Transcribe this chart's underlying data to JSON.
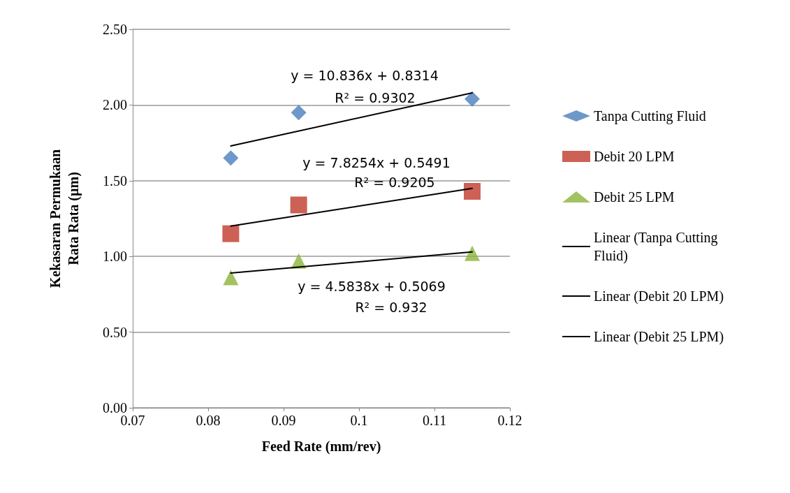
{
  "chart_data": {
    "type": "scatter",
    "xlabel": "Feed Rate (mm/rev)",
    "ylabel": "Kekasaran Permukaan\nRata Rata (µm)",
    "xlim": [
      0.07,
      0.12
    ],
    "xticks": [
      0.07,
      0.08,
      0.09,
      0.1,
      0.11,
      0.12
    ],
    "ylim": [
      0,
      2.5
    ],
    "yticks": [
      {
        "value": 0,
        "label": "0.00"
      },
      {
        "value": 0.5,
        "label": "0.50"
      },
      {
        "value": 1,
        "label": "1.00"
      },
      {
        "value": 1.5,
        "label": "1.50"
      },
      {
        "value": 2,
        "label": "2.00"
      },
      {
        "value": 2.5,
        "label": "2.50"
      }
    ],
    "grid": "y",
    "legend": "right",
    "series": [
      {
        "name": "Tanpa Cutting Fluid",
        "marker": "diamond",
        "color": "#4a7ebb",
        "x": [
          0.083,
          0.092,
          0.115
        ],
        "values": [
          1.65,
          1.95,
          2.04
        ]
      },
      {
        "name": "Debit 20 LPM",
        "marker": "square",
        "color": "#c0392b",
        "x": [
          0.083,
          0.092,
          0.115
        ],
        "values": [
          1.15,
          1.34,
          1.43
        ]
      },
      {
        "name": "Debit 25 LPM",
        "marker": "triangle",
        "color": "#8cb33a",
        "x": [
          0.083,
          0.092,
          0.115
        ],
        "values": [
          0.86,
          0.97,
          1.02
        ]
      },
      {
        "name": "Linear (Tanpa Cutting Fluid)",
        "type": "line",
        "marker": "none",
        "color": "#000000",
        "x": [
          0.083,
          0.115
        ],
        "values": [
          1.73,
          2.08
        ]
      },
      {
        "name": "Linear (Debit 20 LPM)",
        "type": "line",
        "marker": "none",
        "color": "#000000",
        "x": [
          0.083,
          0.115
        ],
        "values": [
          1.2,
          1.45
        ]
      },
      {
        "name": "Linear (Debit 25 LPM)",
        "type": "line",
        "marker": "none",
        "color": "#000000",
        "x": [
          0.083,
          0.115
        ],
        "values": [
          0.89,
          1.03
        ]
      }
    ],
    "annotations": [
      "y = 10.836x + 0.8314",
      "R² = 0.9302",
      "y = 7.8254x + 0.5491",
      "R² = 0.9205",
      "y = 4.5838x + 0.5069",
      "R² = 0.932"
    ]
  }
}
